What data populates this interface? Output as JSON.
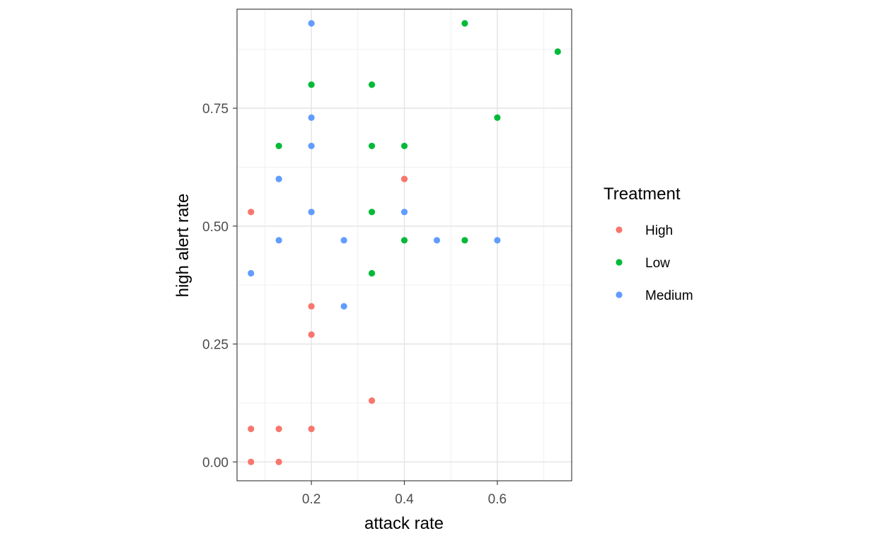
{
  "chart_data": {
    "type": "scatter",
    "xlabel": "attack rate",
    "ylabel": "high alert rate",
    "xlim": [
      0.04,
      0.76
    ],
    "ylim": [
      -0.04,
      0.96
    ],
    "x_ticks": [
      0.2,
      0.4,
      0.6
    ],
    "x_tick_labels": [
      "0.2",
      "0.4",
      "0.6"
    ],
    "y_ticks": [
      0.0,
      0.25,
      0.5,
      0.75
    ],
    "y_tick_labels": [
      "0.00",
      "0.25",
      "0.50",
      "0.75"
    ],
    "grid": true,
    "legend": {
      "title": "Treatment",
      "position": "right"
    },
    "series": [
      {
        "name": "High",
        "color": "#F8766D",
        "points": [
          {
            "x": 0.07,
            "y": 0.53
          },
          {
            "x": 0.07,
            "y": 0.07
          },
          {
            "x": 0.07,
            "y": 0.0
          },
          {
            "x": 0.13,
            "y": 0.07
          },
          {
            "x": 0.13,
            "y": 0.0
          },
          {
            "x": 0.2,
            "y": 0.33
          },
          {
            "x": 0.2,
            "y": 0.27
          },
          {
            "x": 0.2,
            "y": 0.07
          },
          {
            "x": 0.33,
            "y": 0.13
          },
          {
            "x": 0.4,
            "y": 0.6
          }
        ]
      },
      {
        "name": "Low",
        "color": "#00BA38",
        "points": [
          {
            "x": 0.13,
            "y": 0.67
          },
          {
            "x": 0.2,
            "y": 0.8
          },
          {
            "x": 0.33,
            "y": 0.8
          },
          {
            "x": 0.33,
            "y": 0.67
          },
          {
            "x": 0.33,
            "y": 0.53
          },
          {
            "x": 0.33,
            "y": 0.4
          },
          {
            "x": 0.4,
            "y": 0.67
          },
          {
            "x": 0.4,
            "y": 0.47
          },
          {
            "x": 0.53,
            "y": 0.93
          },
          {
            "x": 0.53,
            "y": 0.47
          },
          {
            "x": 0.6,
            "y": 0.73
          },
          {
            "x": 0.73,
            "y": 0.87
          }
        ]
      },
      {
        "name": "Medium",
        "color": "#619CFF",
        "points": [
          {
            "x": 0.07,
            "y": 0.4
          },
          {
            "x": 0.13,
            "y": 0.6
          },
          {
            "x": 0.13,
            "y": 0.47
          },
          {
            "x": 0.2,
            "y": 0.93
          },
          {
            "x": 0.2,
            "y": 0.73
          },
          {
            "x": 0.2,
            "y": 0.67
          },
          {
            "x": 0.2,
            "y": 0.53
          },
          {
            "x": 0.27,
            "y": 0.47
          },
          {
            "x": 0.27,
            "y": 0.33
          },
          {
            "x": 0.4,
            "y": 0.53
          },
          {
            "x": 0.47,
            "y": 0.47
          },
          {
            "x": 0.6,
            "y": 0.47
          }
        ]
      }
    ]
  }
}
